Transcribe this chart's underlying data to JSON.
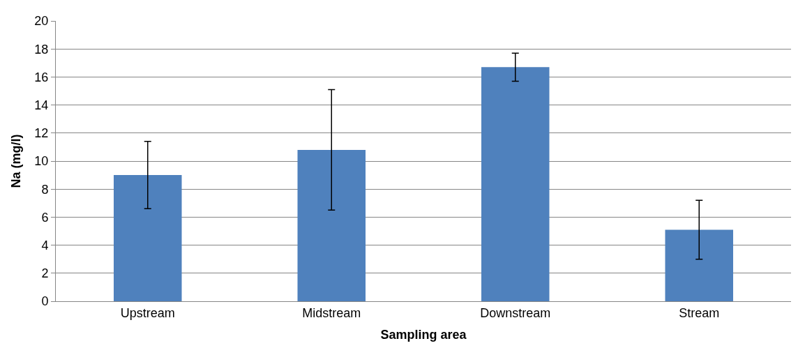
{
  "chart_data": {
    "type": "bar",
    "xlabel": "Sampling area",
    "ylabel": "Na (mg/l)",
    "categories": [
      "Upstream",
      "Midstream",
      "Downstream",
      "Stream"
    ],
    "values": [
      9.0,
      10.8,
      16.7,
      5.1
    ],
    "errors": [
      2.4,
      4.3,
      1.0,
      2.1
    ],
    "color": "#4f81bd",
    "ylim": [
      0,
      20
    ],
    "yticks": [
      0,
      2,
      4,
      6,
      8,
      10,
      12,
      14,
      16,
      18,
      20
    ],
    "grid": "y",
    "legend": false
  }
}
